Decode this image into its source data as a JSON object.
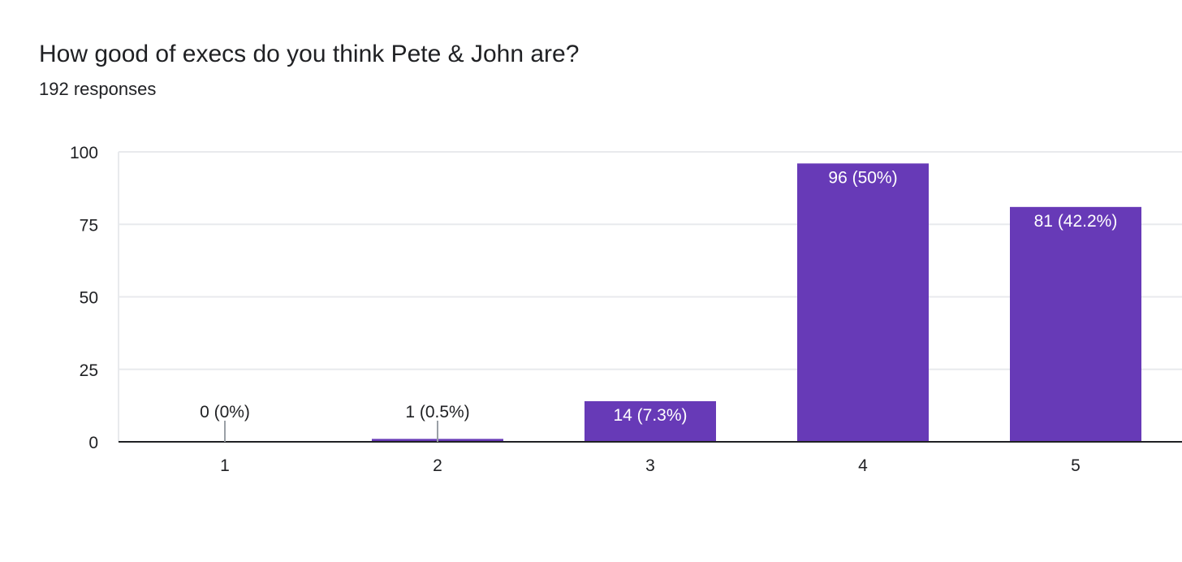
{
  "question": {
    "title": "How good of execs do you think Pete & John are?",
    "responses": "192 responses"
  },
  "chart_data": {
    "type": "bar",
    "categories": [
      "1",
      "2",
      "3",
      "4",
      "5"
    ],
    "values": [
      0,
      1,
      14,
      96,
      81
    ],
    "data_labels": [
      "0 (0%)",
      "1 (0.5%)",
      "14 (7.3%)",
      "96 (50%)",
      "81 (42.2%)"
    ],
    "ylim": [
      0,
      100
    ],
    "yticks": [
      0,
      25,
      50,
      75,
      100
    ],
    "grid": true,
    "legend": "none",
    "colors": {
      "bar": "#673ab7",
      "bar_label_inside": "#ffffff",
      "bar_label_outside": "#202124",
      "grid": "#e8eaed",
      "axis": "#202124",
      "leader": "#9aa0a6"
    }
  }
}
